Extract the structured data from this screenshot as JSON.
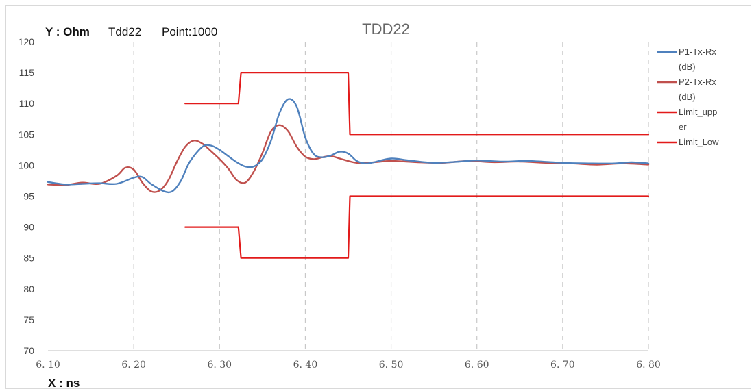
{
  "chart_data": {
    "type": "line",
    "title": "TDD22",
    "header": {
      "y_label": "Y : Ohm",
      "name": "Tdd22",
      "points": "Point:1000"
    },
    "xlabel": "X : ns",
    "xlim": [
      6.1,
      6.8
    ],
    "ylim": [
      70,
      120
    ],
    "x_ticks": [
      "6. 10",
      "6. 20",
      "6. 30",
      "6. 40",
      "6. 50",
      "6. 60",
      "6. 70",
      "6. 80"
    ],
    "y_ticks": [
      "120",
      "115",
      "110",
      "105",
      "100",
      "95",
      "90",
      "85",
      "80",
      "75",
      "70"
    ],
    "x_tick_values": [
      6.1,
      6.2,
      6.3,
      6.4,
      6.5,
      6.6,
      6.7,
      6.8
    ],
    "y_tick_values": [
      120,
      115,
      110,
      105,
      100,
      95,
      90,
      85,
      80,
      75,
      70
    ],
    "grid": {
      "vertical_dashed": true
    },
    "legend_position": "right",
    "series": [
      {
        "name": "P1-Tx-Rx (dB)",
        "legend_lines": [
          "P1-Tx-Rx",
          "(dB)"
        ],
        "color": "#4f81bd",
        "kind": "smooth",
        "points": [
          [
            6.1,
            97.3
          ],
          [
            6.12,
            96.9
          ],
          [
            6.14,
            97.0
          ],
          [
            6.16,
            97.1
          ],
          [
            6.18,
            97.0
          ],
          [
            6.2,
            98.0
          ],
          [
            6.21,
            98.1
          ],
          [
            6.22,
            97.0
          ],
          [
            6.235,
            95.8
          ],
          [
            6.245,
            95.8
          ],
          [
            6.255,
            97.5
          ],
          [
            6.265,
            100.5
          ],
          [
            6.28,
            103.0
          ],
          [
            6.29,
            103.2
          ],
          [
            6.3,
            102.5
          ],
          [
            6.31,
            101.5
          ],
          [
            6.32,
            100.5
          ],
          [
            6.33,
            99.8
          ],
          [
            6.34,
            99.8
          ],
          [
            6.35,
            101.0
          ],
          [
            6.36,
            104.0
          ],
          [
            6.37,
            108.5
          ],
          [
            6.38,
            110.7
          ],
          [
            6.39,
            109.5
          ],
          [
            6.4,
            104.5
          ],
          [
            6.41,
            101.8
          ],
          [
            6.42,
            101.3
          ],
          [
            6.43,
            101.6
          ],
          [
            6.44,
            102.2
          ],
          [
            6.45,
            101.9
          ],
          [
            6.46,
            100.7
          ],
          [
            6.47,
            100.3
          ],
          [
            6.48,
            100.5
          ],
          [
            6.5,
            101.1
          ],
          [
            6.52,
            100.8
          ],
          [
            6.55,
            100.4
          ],
          [
            6.58,
            100.6
          ],
          [
            6.6,
            100.8
          ],
          [
            6.63,
            100.6
          ],
          [
            6.66,
            100.7
          ],
          [
            6.7,
            100.4
          ],
          [
            6.73,
            100.3
          ],
          [
            6.76,
            100.3
          ],
          [
            6.78,
            100.5
          ],
          [
            6.8,
            100.3
          ]
        ]
      },
      {
        "name": "P2-Tx-Rx (dB)",
        "legend_lines": [
          "P2-Tx-Rx",
          "(dB)"
        ],
        "color": "#c0504d",
        "kind": "smooth",
        "points": [
          [
            6.1,
            96.9
          ],
          [
            6.12,
            96.8
          ],
          [
            6.14,
            97.2
          ],
          [
            6.16,
            97.0
          ],
          [
            6.18,
            98.3
          ],
          [
            6.19,
            99.6
          ],
          [
            6.2,
            99.3
          ],
          [
            6.21,
            97.2
          ],
          [
            6.22,
            95.8
          ],
          [
            6.23,
            95.9
          ],
          [
            6.24,
            97.5
          ],
          [
            6.25,
            100.5
          ],
          [
            6.26,
            103.0
          ],
          [
            6.27,
            104.0
          ],
          [
            6.28,
            103.5
          ],
          [
            6.29,
            102.3
          ],
          [
            6.3,
            101.0
          ],
          [
            6.31,
            99.5
          ],
          [
            6.32,
            97.6
          ],
          [
            6.33,
            97.2
          ],
          [
            6.34,
            99.0
          ],
          [
            6.35,
            102.0
          ],
          [
            6.36,
            105.5
          ],
          [
            6.37,
            106.5
          ],
          [
            6.38,
            105.5
          ],
          [
            6.39,
            103.0
          ],
          [
            6.4,
            101.4
          ],
          [
            6.41,
            101.0
          ],
          [
            6.42,
            101.3
          ],
          [
            6.43,
            101.5
          ],
          [
            6.44,
            101.1
          ],
          [
            6.46,
            100.4
          ],
          [
            6.48,
            100.5
          ],
          [
            6.5,
            100.7
          ],
          [
            6.53,
            100.5
          ],
          [
            6.56,
            100.4
          ],
          [
            6.59,
            100.7
          ],
          [
            6.62,
            100.5
          ],
          [
            6.65,
            100.6
          ],
          [
            6.68,
            100.4
          ],
          [
            6.71,
            100.3
          ],
          [
            6.74,
            100.1
          ],
          [
            6.77,
            100.3
          ],
          [
            6.8,
            100.1
          ]
        ]
      },
      {
        "name": "Limit_upper",
        "legend_lines": [
          "Limit_upp",
          "er"
        ],
        "color": "#e21a1a",
        "kind": "straight",
        "points": [
          [
            6.26,
            110
          ],
          [
            6.322,
            110
          ],
          [
            6.325,
            115
          ],
          [
            6.45,
            115
          ],
          [
            6.452,
            105
          ],
          [
            6.8,
            105
          ]
        ]
      },
      {
        "name": "Limit_Low",
        "legend_lines": [
          "Limit_Low"
        ],
        "color": "#e21a1a",
        "kind": "straight",
        "points": [
          [
            6.26,
            90
          ],
          [
            6.322,
            90
          ],
          [
            6.325,
            85
          ],
          [
            6.45,
            85
          ],
          [
            6.452,
            95
          ],
          [
            6.8,
            95
          ]
        ]
      }
    ]
  }
}
